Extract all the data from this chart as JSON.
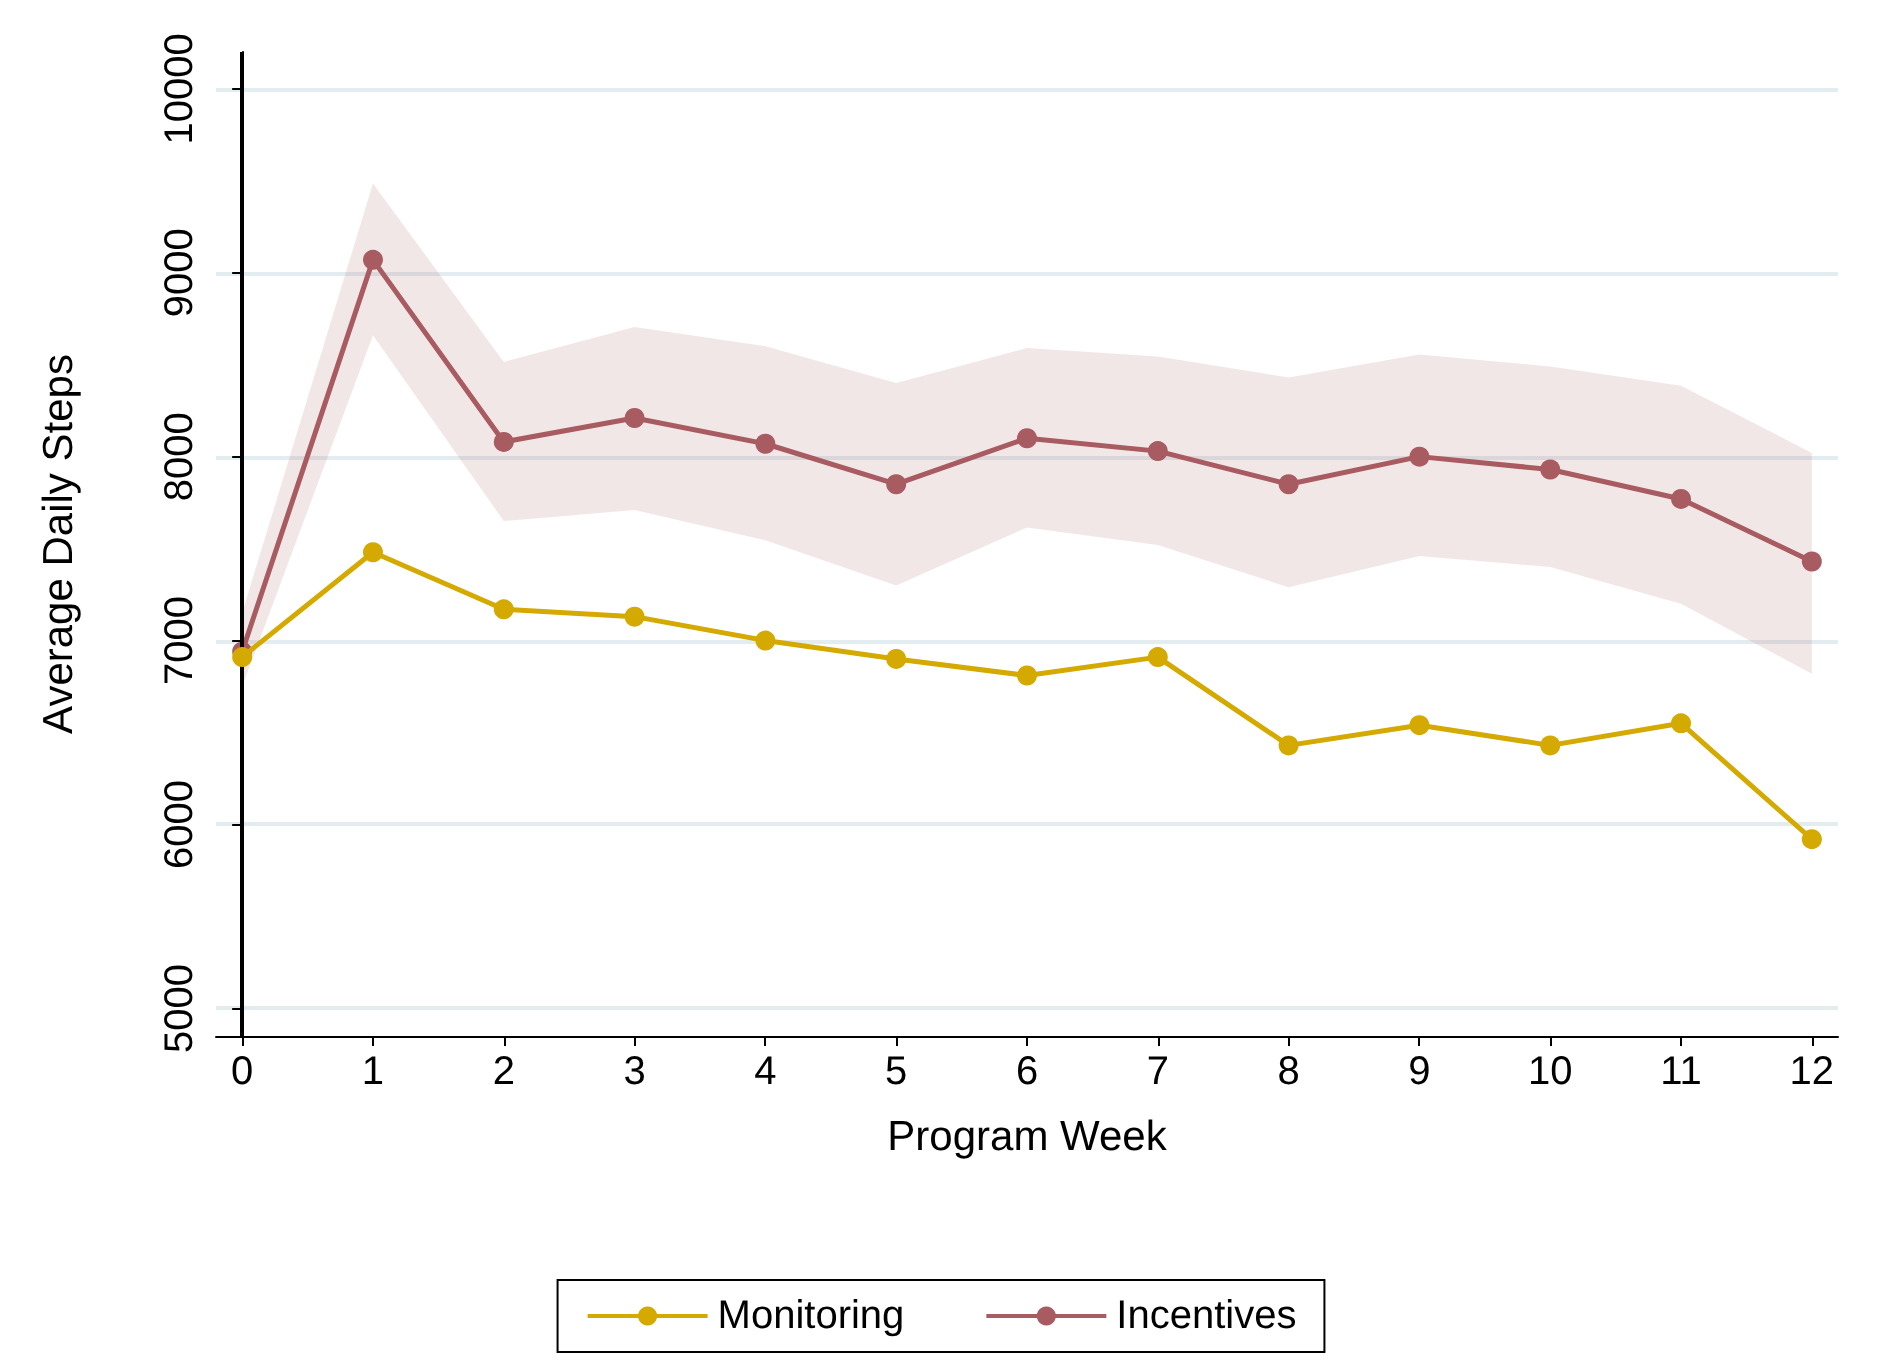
{
  "chart_data": {
    "type": "line",
    "xlabel": "Program Week",
    "ylabel": "Average Daily Steps",
    "x": [
      0,
      1,
      2,
      3,
      4,
      5,
      6,
      7,
      8,
      9,
      10,
      11,
      12
    ],
    "series": [
      {
        "name": "Monitoring",
        "color": "#d4a900",
        "values": [
          6910,
          7480,
          7170,
          7130,
          7000,
          6900,
          6810,
          6910,
          6430,
          6540,
          6430,
          6550,
          5920
        ]
      },
      {
        "name": "Incentives",
        "color": "#a85b61",
        "values": [
          6940,
          9070,
          8080,
          8210,
          8070,
          7850,
          8100,
          8030,
          7850,
          8000,
          7930,
          7770,
          7430
        ],
        "lower": [
          6750,
          8660,
          7650,
          7710,
          7545,
          7300,
          7615,
          7520,
          7290,
          7460,
          7400,
          7200,
          6820
        ],
        "upper": [
          7150,
          9485,
          8515,
          8705,
          8600,
          8400,
          8590,
          8545,
          8430,
          8555,
          8490,
          8385,
          8020
        ]
      }
    ],
    "xlim": [
      -0.2,
      12.2
    ],
    "xticks": [
      0,
      1,
      2,
      3,
      4,
      5,
      6,
      7,
      8,
      9,
      10,
      11,
      12
    ],
    "ylim": [
      4850,
      10200
    ],
    "yticks": [
      5000,
      6000,
      7000,
      8000,
      9000,
      10000
    ],
    "ref_lines": [
      {
        "axis": "x",
        "value": 0,
        "color": "#000000"
      }
    ],
    "grid": "y",
    "legend": "bottom",
    "marker": "circle"
  }
}
